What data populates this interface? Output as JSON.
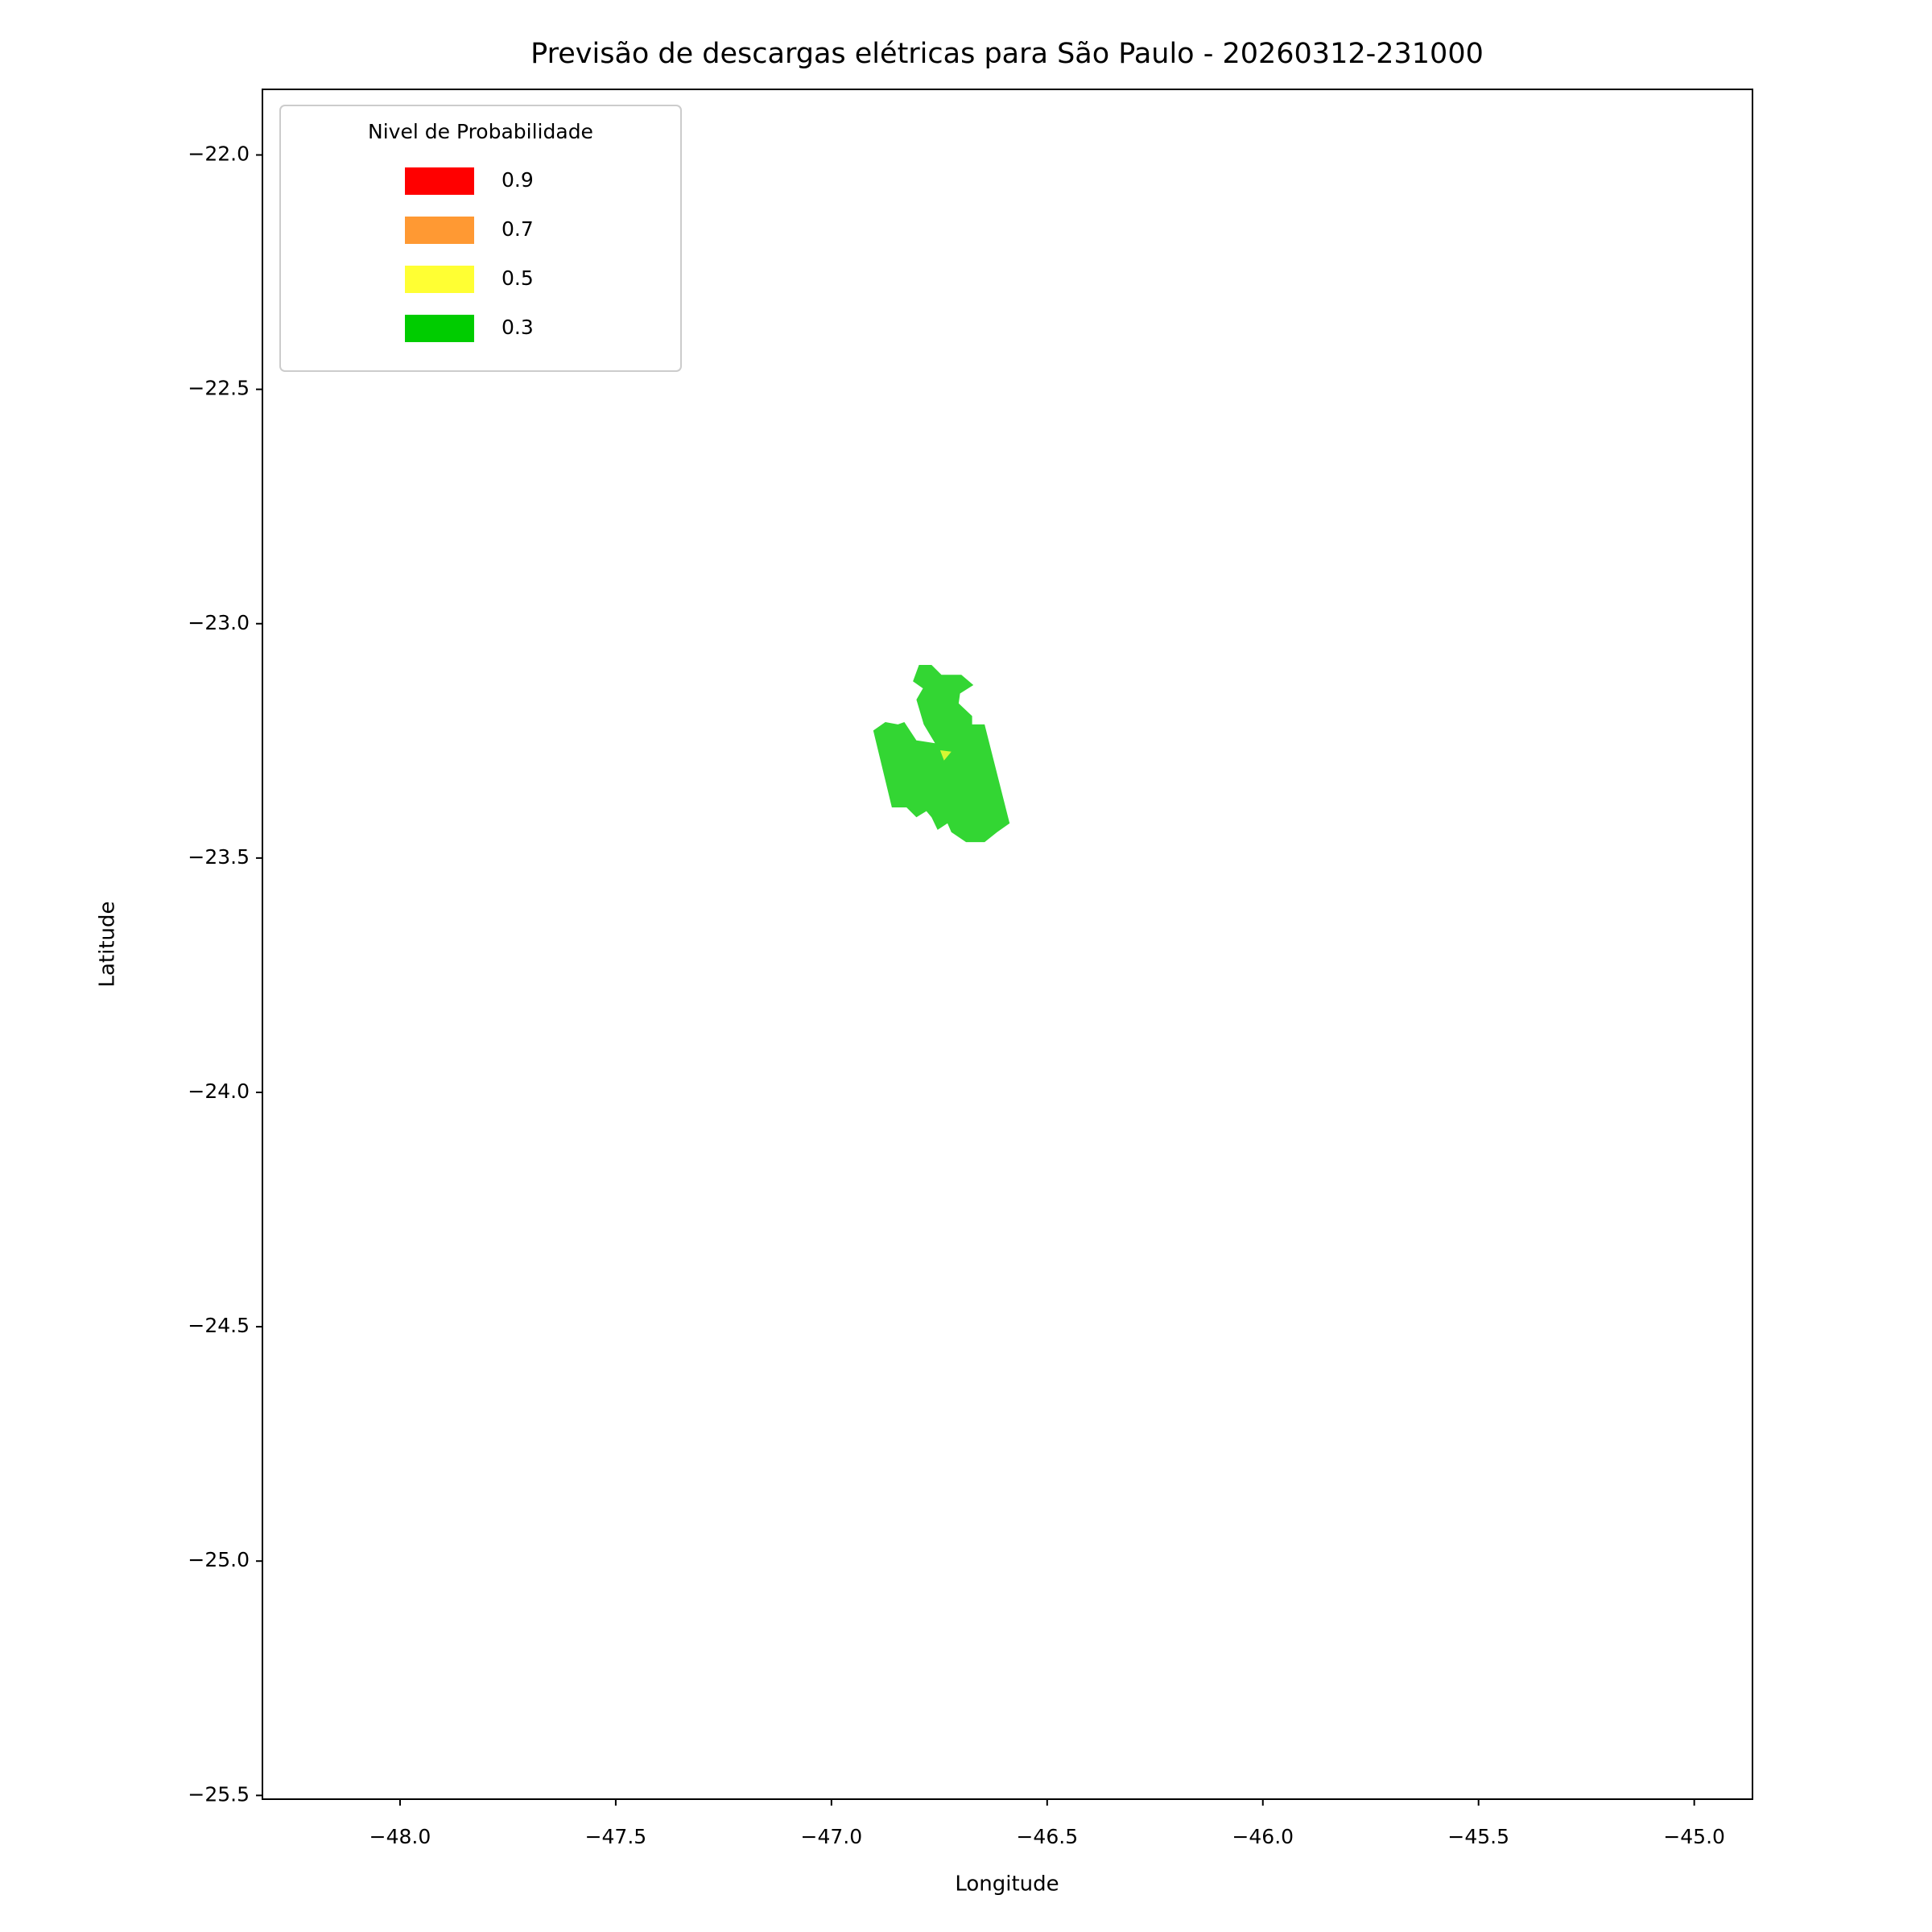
{
  "chart_data": {
    "type": "map",
    "title": "Previsão de descargas elétricas para São Paulo - 20260312-231000",
    "xlabel": "Longitude",
    "ylabel": "Latitude",
    "xlim": [
      -48.319,
      -44.865
    ],
    "ylim": [
      -25.508,
      -21.86
    ],
    "xticks": [
      {
        "value": -48.0,
        "label": "−48.0"
      },
      {
        "value": -47.5,
        "label": "−47.5"
      },
      {
        "value": -47.0,
        "label": "−47.0"
      },
      {
        "value": -46.5,
        "label": "−46.5"
      },
      {
        "value": -46.0,
        "label": "−46.0"
      },
      {
        "value": -45.5,
        "label": "−45.5"
      },
      {
        "value": -45.0,
        "label": "−45.0"
      }
    ],
    "yticks": [
      {
        "value": -22.0,
        "label": "−22.0"
      },
      {
        "value": -22.5,
        "label": "−22.5"
      },
      {
        "value": -23.0,
        "label": "−23.0"
      },
      {
        "value": -23.5,
        "label": "−23.5"
      },
      {
        "value": -24.0,
        "label": "−24.0"
      },
      {
        "value": -24.5,
        "label": "−24.5"
      },
      {
        "value": -25.0,
        "label": "−25.0"
      },
      {
        "value": -25.5,
        "label": "−25.5"
      }
    ],
    "legend": {
      "title": "Nivel de Probabilidade",
      "loc": "upper left",
      "levels": [
        {
          "value": 0.9,
          "color": "#ff0000"
        },
        {
          "value": 0.7,
          "color": "#ff9933"
        },
        {
          "value": 0.5,
          "color": "#ffff33"
        },
        {
          "value": 0.3,
          "color": "#00cc00"
        }
      ]
    },
    "alpha": 0.8,
    "series": [
      {
        "level": 0.3,
        "x": [
          -46.797,
          -46.768,
          -46.745,
          -46.699,
          -46.671,
          -46.702,
          -46.705,
          -46.674,
          -46.674,
          -46.645,
          -46.587,
          -46.616,
          -46.645,
          -46.688,
          -46.722,
          -46.731,
          -46.754,
          -46.768,
          -46.78,
          -46.803,
          -46.826,
          -46.86,
          -46.903,
          -46.875,
          -46.846,
          -46.831,
          -46.803,
          -46.76,
          -46.786,
          -46.803,
          -46.788,
          -46.811
        ],
        "y": [
          -23.088,
          -23.088,
          -23.109,
          -23.109,
          -23.131,
          -23.149,
          -23.17,
          -23.197,
          -23.215,
          -23.215,
          -23.426,
          -23.445,
          -23.466,
          -23.466,
          -23.445,
          -23.426,
          -23.44,
          -23.413,
          -23.4,
          -23.413,
          -23.392,
          -23.392,
          -23.228,
          -23.21,
          -23.215,
          -23.21,
          -23.249,
          -23.255,
          -23.215,
          -23.162,
          -23.138,
          -23.123
        ]
      },
      {
        "level": 0.5,
        "x": [
          -46.748,
          -46.722,
          -46.739
        ],
        "y": [
          -23.27,
          -23.273,
          -23.292
        ]
      }
    ]
  }
}
